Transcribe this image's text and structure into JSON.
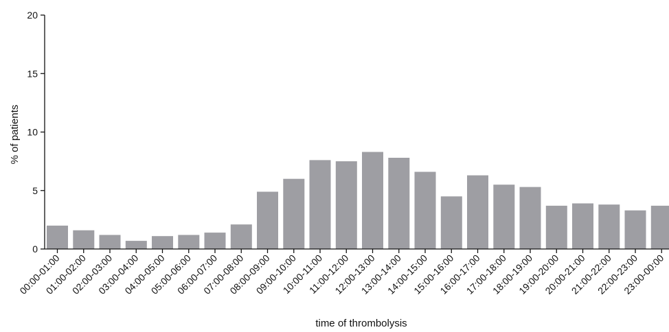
{
  "chart_data": {
    "type": "bar",
    "xlabel": "time of thrombolysis",
    "ylabel": "% of patients",
    "ylim": [
      0,
      20
    ],
    "yticks": [
      "0",
      "5",
      "10",
      "15",
      "20"
    ],
    "bar_color": "#9e9ea3",
    "categories": [
      "00:00-01:00",
      "01:00-02:00",
      "02:00-03:00",
      "03:00-04:00",
      "04:00-05:00",
      "05:00-06:00",
      "06:00-07:00",
      "07:00-08:00",
      "08:00-09:00",
      "09:00-10:00",
      "10:00-11:00",
      "11:00-12:00",
      "12:00-13:00",
      "13:00-14:00",
      "14:00-15:00",
      "15:00-16:00",
      "16:00-17:00",
      "17:00-18:00",
      "18:00-19:00",
      "19:00-20:00",
      "20:00-21:00",
      "21:00-22:00",
      "22:00-23:00",
      "23:00-00:00"
    ],
    "values": [
      2.0,
      1.6,
      1.2,
      0.7,
      1.1,
      1.2,
      1.4,
      2.1,
      4.9,
      6.0,
      7.6,
      7.5,
      8.3,
      7.8,
      6.6,
      4.5,
      6.3,
      5.5,
      5.3,
      3.7,
      3.9,
      3.8,
      3.3,
      3.7
    ],
    "grid": false,
    "legend": "none"
  }
}
